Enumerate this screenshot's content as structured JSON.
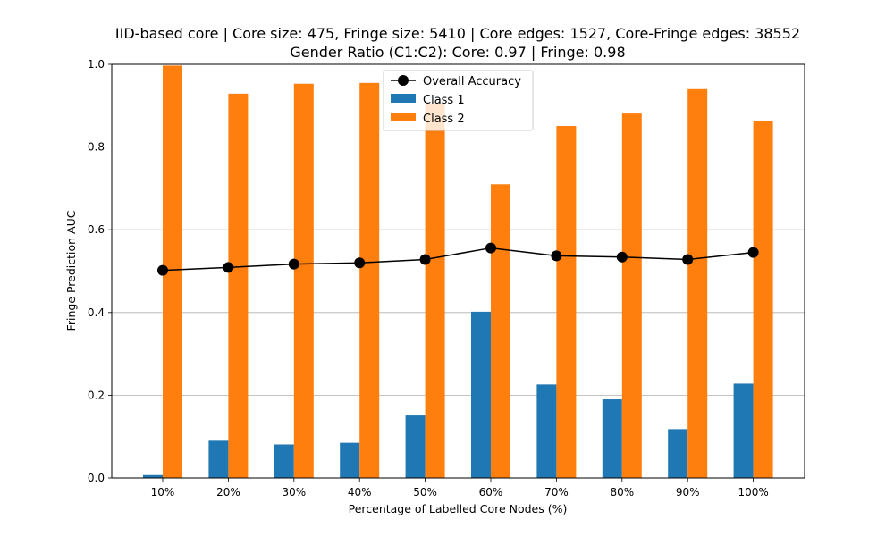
{
  "chart_data": {
    "type": "bar",
    "title": [
      "IID-based core | Core size: 475, Fringe size: 5410 | Core edges: 1527, Core-Fringe edges: 38552",
      "Gender Ratio (C1:C2): Core: 0.97 | Fringe: 0.98"
    ],
    "xlabel": "Percentage of Labelled Core Nodes (%)",
    "ylabel": "Fringe Prediction AUC",
    "categories": [
      "10%",
      "20%",
      "30%",
      "40%",
      "50%",
      "60%",
      "70%",
      "80%",
      "90%",
      "100%"
    ],
    "ylim": [
      0,
      1.0
    ],
    "yticks": [
      "0.0",
      "0.2",
      "0.4",
      "0.6",
      "0.8",
      "1.0"
    ],
    "grid": "horizontal",
    "legend_position": "top-center",
    "series": [
      {
        "name": "Overall Accuracy",
        "kind": "line",
        "color": "#000000",
        "values": [
          0.502,
          0.509,
          0.517,
          0.52,
          0.528,
          0.556,
          0.537,
          0.534,
          0.528,
          0.545
        ]
      },
      {
        "name": "Class 1",
        "kind": "bar",
        "color": "#1f77b4",
        "values": [
          0.007,
          0.09,
          0.081,
          0.085,
          0.151,
          0.402,
          0.226,
          0.19,
          0.118,
          0.228
        ]
      },
      {
        "name": "Class 2",
        "kind": "bar",
        "color": "#ff7f0e",
        "values": [
          0.997,
          0.929,
          0.953,
          0.955,
          0.906,
          0.71,
          0.851,
          0.881,
          0.94,
          0.864
        ]
      }
    ]
  }
}
